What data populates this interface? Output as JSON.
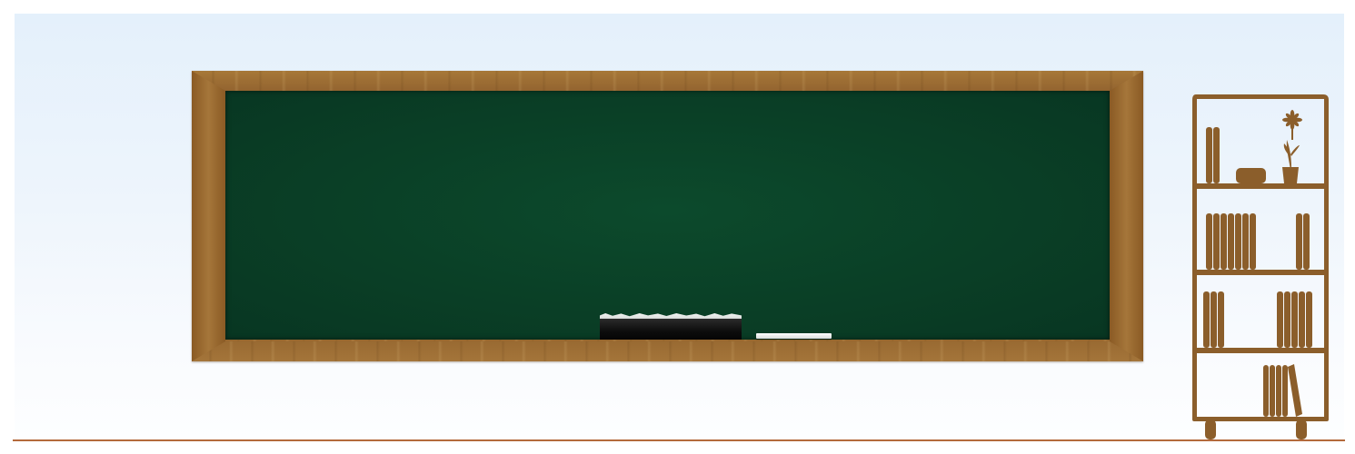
{
  "scene": {
    "colors": {
      "wall_top": "#e4f0fb",
      "wall_bottom": "#fdfeff",
      "floor_line": "#b46a3c",
      "frame_wood": "#9a6a30",
      "board_green": "#0a3f26",
      "eraser": "#0d0d0d",
      "chalk": "#ffffff",
      "shelf_wood": "#8b5e2b"
    },
    "icons": {
      "flower": "flower-icon",
      "box": "box-icon",
      "books": "books-icon"
    }
  }
}
